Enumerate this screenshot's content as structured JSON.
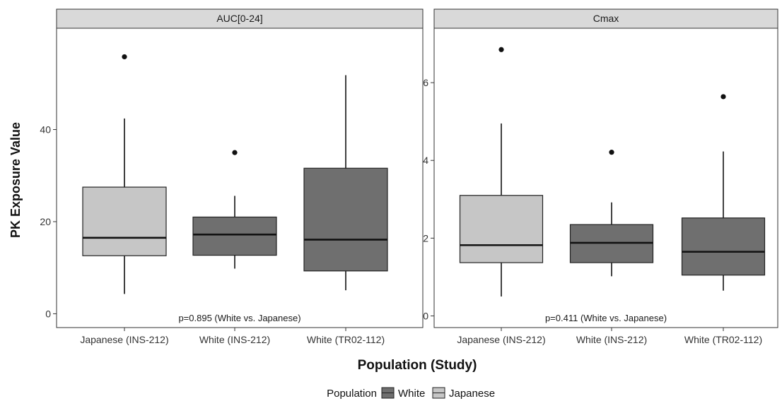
{
  "chart_data": {
    "type": "boxplot",
    "ylabel": "PK Exposure Value",
    "xlabel": "Population (Study)",
    "categories": [
      "Japanese (INS-212)",
      "White (INS-212)",
      "White (TR02-112)"
    ],
    "legend": {
      "title": "Population",
      "placement": "bottom",
      "entries": [
        {
          "label": "White",
          "color": "#6f6f6f"
        },
        {
          "label": "Japanese",
          "color": "#c6c6c6"
        }
      ]
    },
    "panels": [
      {
        "title": "AUC[0-24]",
        "ylim": [
          -3,
          62
        ],
        "yticks": [
          0,
          20,
          40
        ],
        "annotation": "p=0.895 (White vs. Japanese)",
        "boxes": [
          {
            "category": "Japanese (INS-212)",
            "population": "Japanese",
            "min": 4.3,
            "q1": 12.6,
            "median": 16.5,
            "q3": 27.5,
            "max": 42.4,
            "outliers": [
              55.8
            ]
          },
          {
            "category": "White (INS-212)",
            "population": "White",
            "min": 9.8,
            "q1": 12.7,
            "median": 17.2,
            "q3": 21.0,
            "max": 25.6,
            "outliers": [
              35.0
            ]
          },
          {
            "category": "White (TR02-112)",
            "population": "White",
            "min": 5.1,
            "q1": 9.3,
            "median": 16.1,
            "q3": 31.6,
            "max": 51.8,
            "outliers": []
          }
        ]
      },
      {
        "title": "Cmax",
        "ylim": [
          -0.3,
          7.4
        ],
        "yticks": [
          0,
          2,
          4,
          6
        ],
        "annotation": "p=0.411 (White vs. Japanese)",
        "boxes": [
          {
            "category": "Japanese (INS-212)",
            "population": "Japanese",
            "min": 0.5,
            "q1": 1.37,
            "median": 1.82,
            "q3": 3.1,
            "max": 4.95,
            "outliers": [
              6.85
            ]
          },
          {
            "category": "White (INS-212)",
            "population": "White",
            "min": 1.02,
            "q1": 1.37,
            "median": 1.88,
            "q3": 2.35,
            "max": 2.92,
            "outliers": [
              4.21
            ]
          },
          {
            "category": "White (TR02-112)",
            "population": "White",
            "min": 0.65,
            "q1": 1.05,
            "median": 1.65,
            "q3": 2.52,
            "max": 4.23,
            "outliers": [
              5.64
            ]
          }
        ]
      }
    ]
  }
}
